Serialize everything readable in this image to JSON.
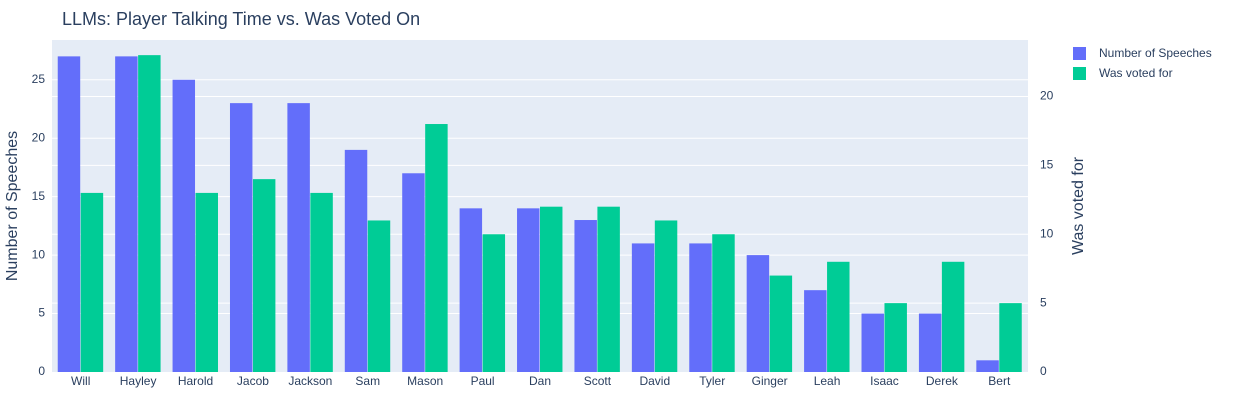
{
  "chart_data": {
    "type": "bar",
    "title": "LLMs: Player Talking Time vs. Was Voted On",
    "categories": [
      "Will",
      "Hayley",
      "Harold",
      "Jacob",
      "Jackson",
      "Sam",
      "Mason",
      "Paul",
      "Dan",
      "Scott",
      "David",
      "Tyler",
      "Ginger",
      "Leah",
      "Isaac",
      "Derek",
      "Bert"
    ],
    "series": [
      {
        "name": "Number of Speeches",
        "axis": "left",
        "color": "#636efa",
        "values": [
          27,
          27,
          25,
          23,
          23,
          19,
          17,
          14,
          14,
          13,
          11,
          11,
          10,
          7,
          5,
          5,
          1
        ]
      },
      {
        "name": "Was voted for",
        "axis": "right",
        "color": "#00cc96",
        "values": [
          13,
          23,
          13,
          14,
          13,
          11,
          18,
          10,
          12,
          12,
          11,
          10,
          7,
          8,
          5,
          8,
          5
        ]
      }
    ],
    "ylabel": "Number of Speeches",
    "ylabel_right": "Was voted for",
    "ylim": [
      0,
      28.4
    ],
    "ylim_right": [
      0,
      24.1
    ],
    "yticks": [
      0,
      5,
      10,
      15,
      20,
      25
    ],
    "yticks_right": [
      0,
      5,
      10,
      15,
      20
    ],
    "grid": true,
    "plot_background": "#e5ecf6",
    "legend_position": "top-right"
  }
}
